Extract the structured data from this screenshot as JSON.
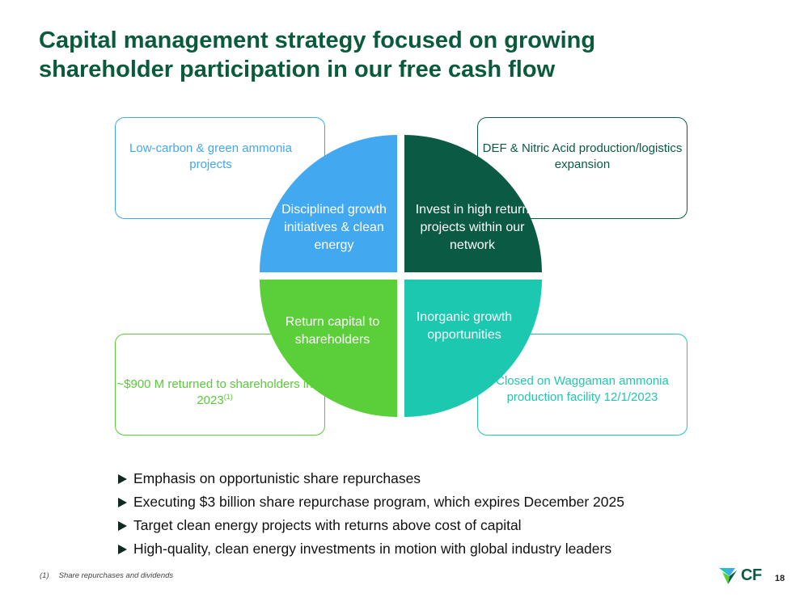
{
  "slide": {
    "title_line1": "Capital management strategy focused on growing",
    "title_line2": "shareholder participation in our free cash flow",
    "page_number": "18"
  },
  "diagram": {
    "boxes": {
      "top_left": "Low-carbon & green ammonia projects",
      "top_right": "DEF & Nitric Acid production/logistics expansion",
      "bottom_left": "~$900 M returned to shareholders in 2023",
      "bottom_left_sup": "(1)",
      "bottom_right": "Closed on Waggaman ammonia production facility 12/1/2023"
    },
    "quadrants": {
      "top_left": "Disciplined growth initiatives & clean energy",
      "top_right": "Invest in high return projects within our network",
      "bottom_left": "Return capital to shareholders",
      "bottom_right": "Inorganic growth opportunities"
    }
  },
  "bullets": [
    "Emphasis on opportunistic share repurchases",
    "Executing $3 billion share repurchase program, which expires December 2025",
    "Target clean energy projects with returns above cost of capital",
    "High-quality, clean energy investments in motion with global industry leaders"
  ],
  "footnote": {
    "marker": "(1)",
    "text": "Share repurchases and dividends"
  },
  "logo": {
    "text": "CF"
  },
  "colors": {
    "title": "#0a5a3c",
    "blue": "#42a8f0",
    "dark_green": "#0a5a44",
    "green": "#5bcf3a",
    "teal": "#1cc8b0"
  }
}
